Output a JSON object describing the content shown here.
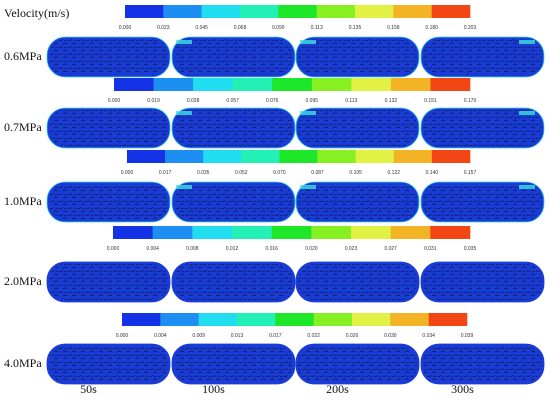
{
  "title": "Velocity(m/s)",
  "colors": [
    "#1432e6",
    "#1e8ff2",
    "#22dcf0",
    "#22f0b4",
    "#1ee628",
    "#86f022",
    "#e2f244",
    "#f2b424",
    "#f24614"
  ],
  "rows": [
    {
      "label": "0.6MPa",
      "ticks": [
        "0.000",
        "0.023",
        "0.045",
        "0.068",
        "0.090",
        "0.113",
        "0.135",
        "0.158",
        "0.180",
        "0.203"
      ]
    },
    {
      "label": "0.7MPa",
      "ticks": [
        "0.000",
        "0.019",
        "0.038",
        "0.057",
        "0.076",
        "0.095",
        "0.113",
        "0.132",
        "0.151",
        "0.170"
      ]
    },
    {
      "label": "1.0MPa",
      "ticks": [
        "0.000",
        "0.017",
        "0.035",
        "0.052",
        "0.070",
        "0.087",
        "0.105",
        "0.122",
        "0.140",
        "0.157"
      ]
    },
    {
      "label": "2.0MPa",
      "ticks": [
        "0.000",
        "0.004",
        "0.008",
        "0.012",
        "0.016",
        "0.020",
        "0.023",
        "0.027",
        "0.031",
        "0.035"
      ]
    },
    {
      "label": "4.0MPa",
      "ticks": [
        "0.000",
        "0.004",
        "0.009",
        "0.013",
        "0.017",
        "0.022",
        "0.026",
        "0.030",
        "0.034",
        "0.039"
      ]
    }
  ],
  "columns": [
    "50s",
    "100s",
    "200s",
    "300s"
  ]
}
